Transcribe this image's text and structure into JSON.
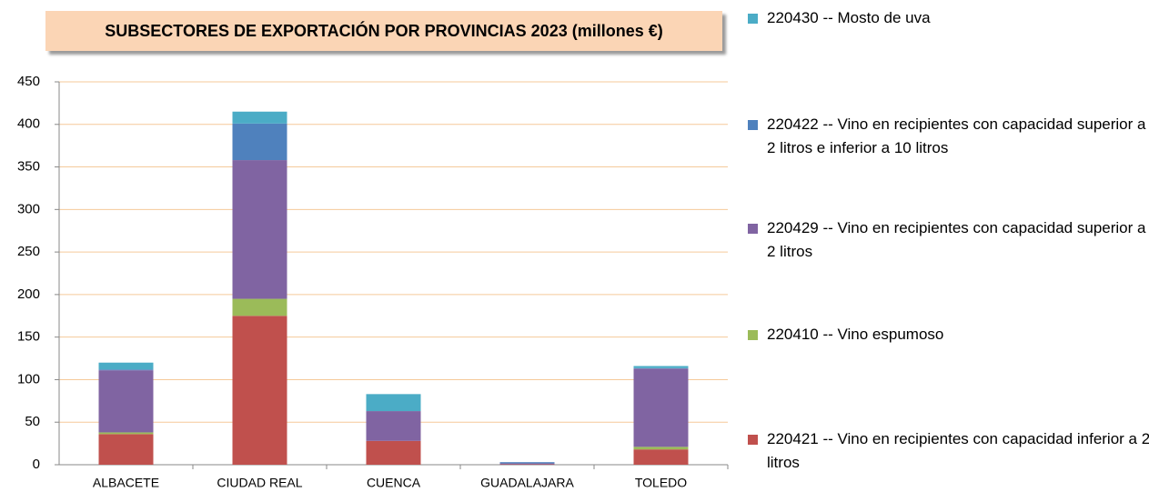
{
  "chart_data": {
    "type": "stacked_bar",
    "title": "SUBSECTORES DE EXPORTACIÓN  POR PROVINCIAS  2023 (millones  €)",
    "categories": [
      "ALBACETE",
      "CIUDAD REAL",
      "CUENCA",
      "GUADALAJARA",
      "TOLEDO"
    ],
    "series": [
      {
        "name": "220421 -- Vino en recipientes con capacidad inferior a 2 litros",
        "color": "#c0504d",
        "values": [
          36,
          175,
          28,
          0.5,
          18
        ]
      },
      {
        "name": "220410 -- Vino espumoso",
        "color": "#9bbb59",
        "values": [
          2,
          20,
          0,
          0,
          3
        ]
      },
      {
        "name": "220429 -- Vino en recipientes con capacidad superior a 2 litros",
        "color": "#8064a2",
        "values": [
          73,
          163,
          35,
          1,
          92
        ]
      },
      {
        "name": "220422 -- Vino en recipientes con capacidad superior a 2 litros e inferior a 10 litros",
        "color": "#4f81bd",
        "values": [
          1,
          43,
          0,
          1.5,
          0.5
        ]
      },
      {
        "name": "220430 -- Mosto de uva",
        "color": "#4bacc6",
        "values": [
          8,
          14,
          20,
          0,
          2.5
        ]
      }
    ],
    "ylim": [
      0,
      450
    ],
    "yticks": [
      0,
      50,
      100,
      150,
      200,
      250,
      300,
      350,
      400,
      450
    ],
    "grid": true
  }
}
